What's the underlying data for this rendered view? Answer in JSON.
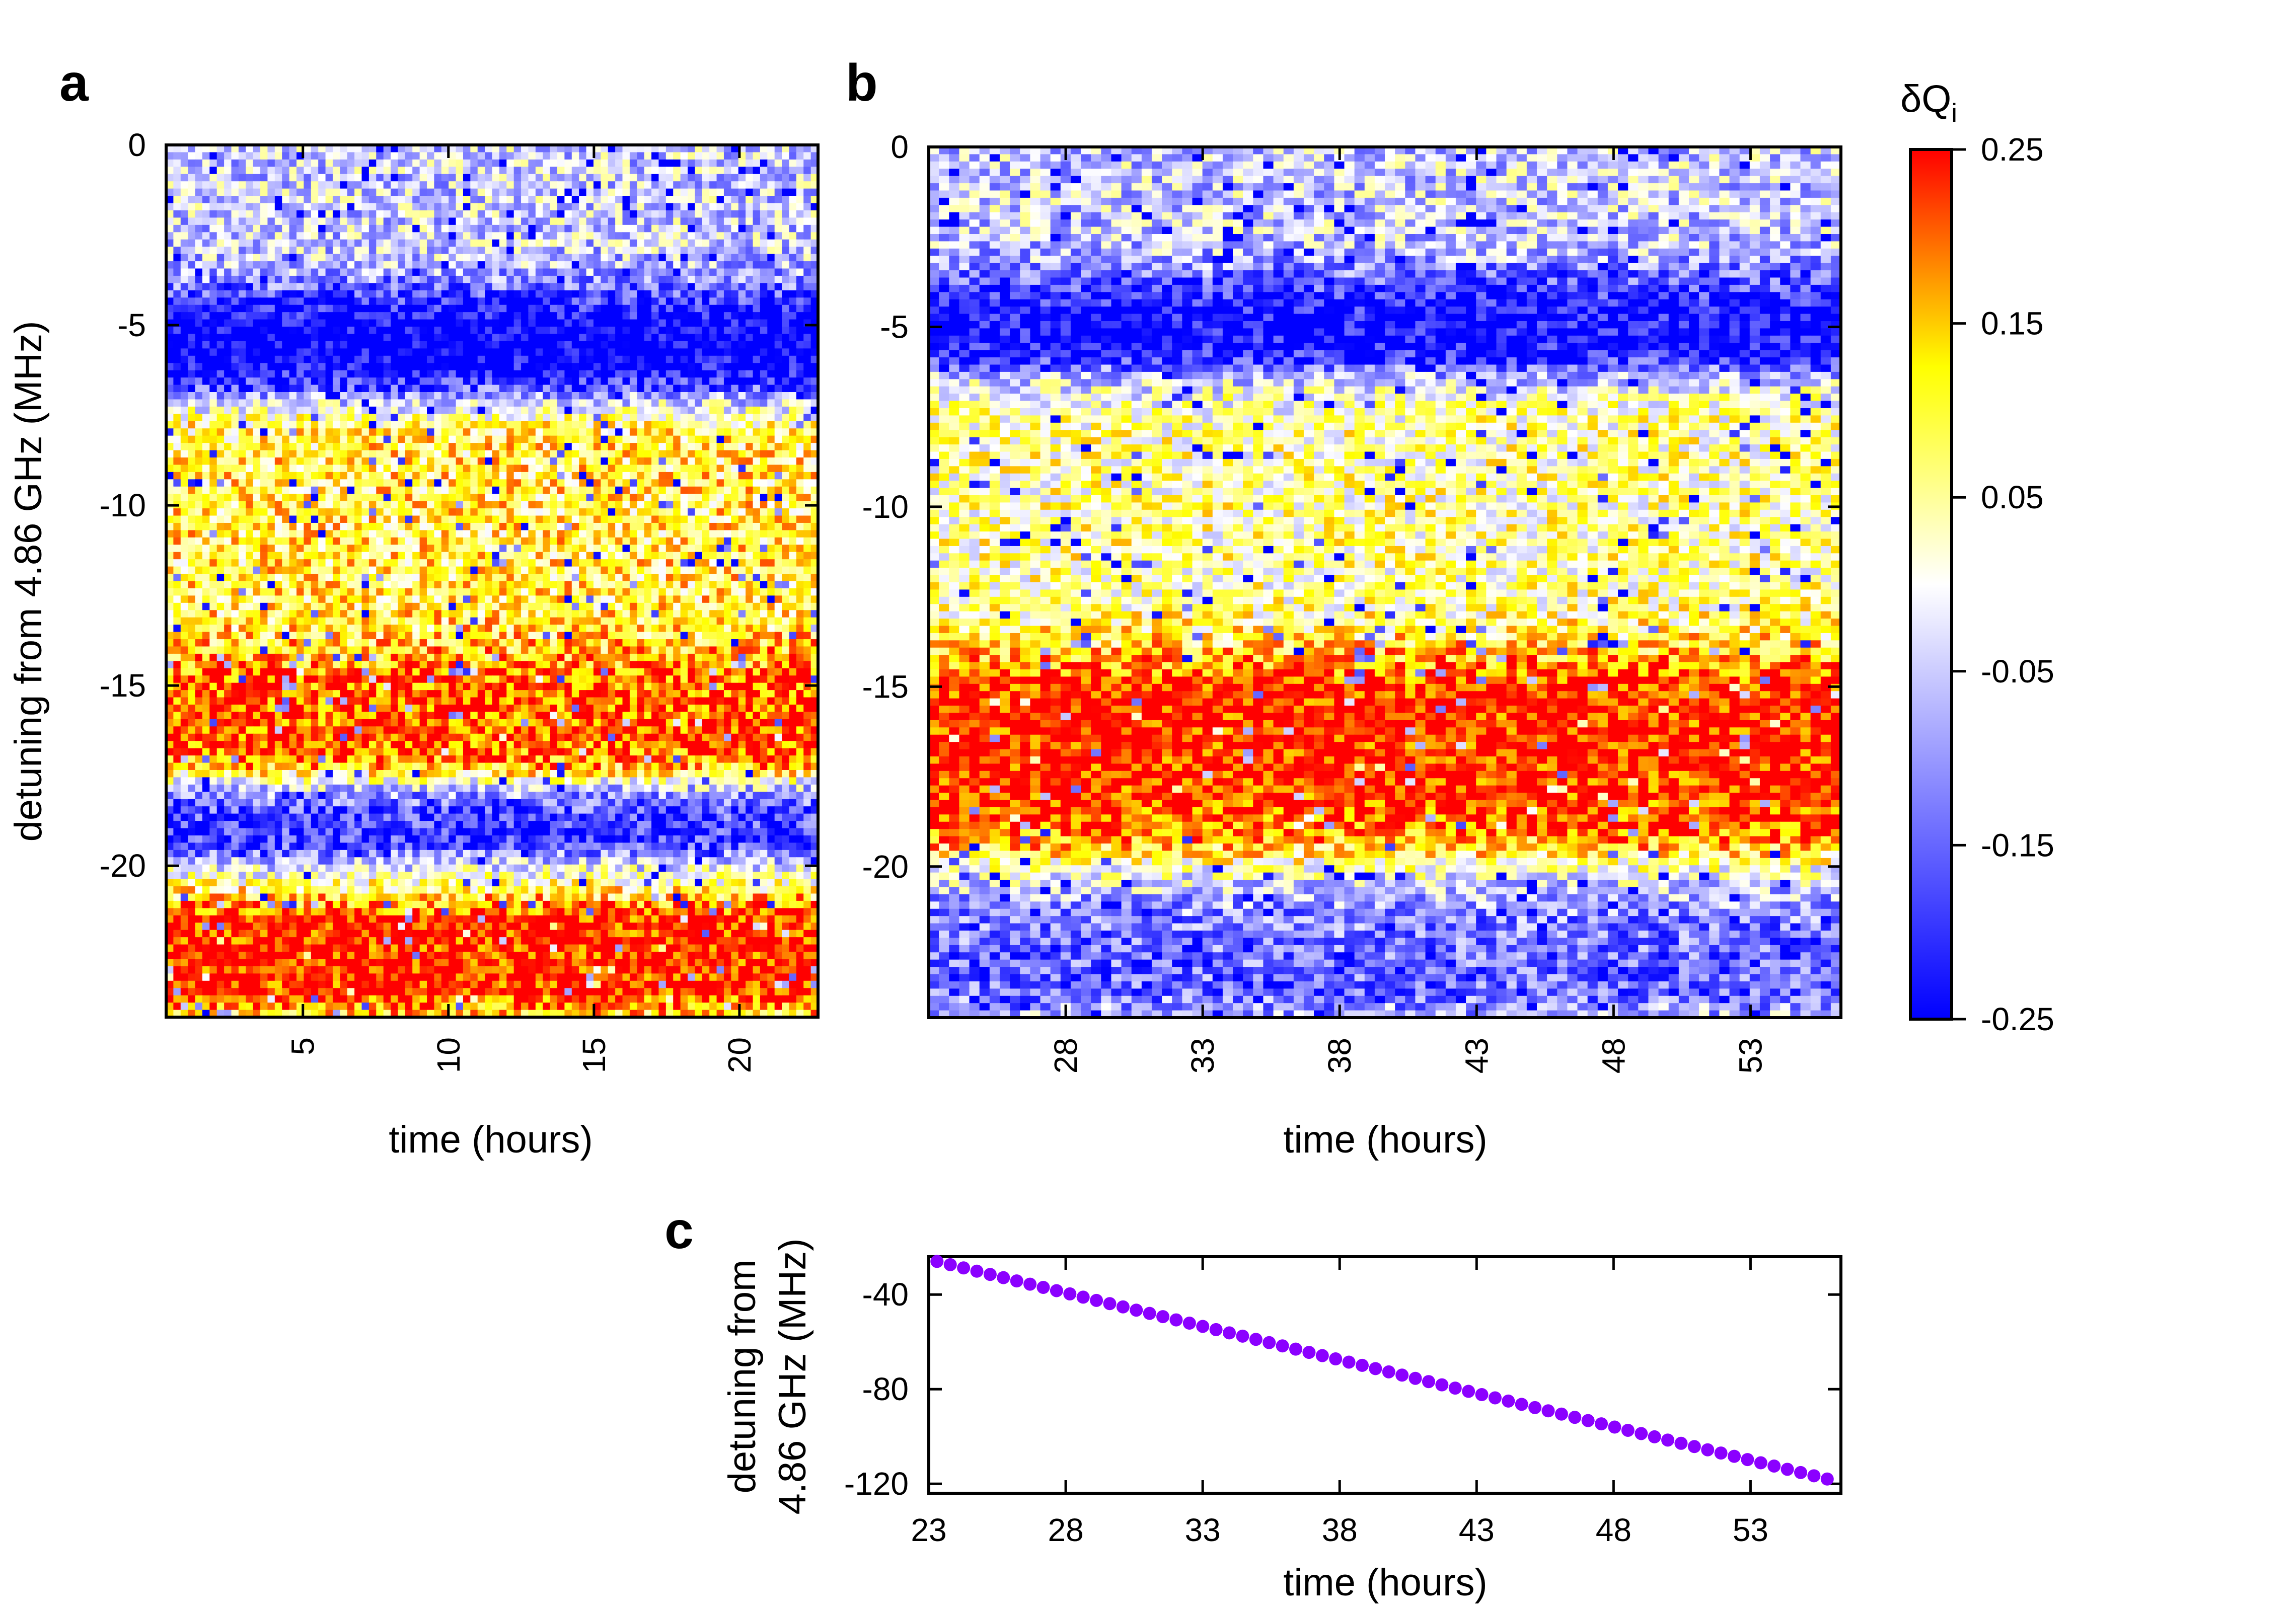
{
  "panels": {
    "a": "a",
    "b": "b",
    "c": "c"
  },
  "colorbar": {
    "title_main": "δQ",
    "title_sub": "i",
    "ticks": [
      "0.25",
      "0.15",
      "0.05",
      "-0.05",
      "-0.15",
      "-0.25"
    ],
    "colors": [
      "#0000ff",
      "#ffffff",
      "#ffff00",
      "#ff0000"
    ]
  },
  "chart_data": [
    {
      "panel": "a",
      "type": "heatmap",
      "xlabel": "time (hours)",
      "ylabel": "detuning from 4.86 GHz (MHz)",
      "xlim": [
        0.3,
        22.7
      ],
      "ylim": [
        0,
        -24.2
      ],
      "xticks": [
        "5",
        "10",
        "15",
        "20"
      ],
      "yticks": [
        "0",
        "-5",
        "-10",
        "-15",
        "-20"
      ],
      "color_range": [
        -0.25,
        0.25
      ],
      "bands": [
        {
          "center": -1.5,
          "width": 2.5,
          "value": -0.05
        },
        {
          "center": -5.5,
          "width": 1.3,
          "value": -0.3
        },
        {
          "center": -9.0,
          "width": 1.8,
          "value": 0.1
        },
        {
          "center": -12.5,
          "width": 1.5,
          "value": 0.1
        },
        {
          "center": -16.0,
          "width": 1.6,
          "value": 0.22
        },
        {
          "center": -18.7,
          "width": 1.0,
          "value": -0.2
        },
        {
          "center": -22.5,
          "width": 1.5,
          "value": 0.25
        }
      ]
    },
    {
      "panel": "b",
      "type": "heatmap",
      "xlabel": "time (hours)",
      "ylabel": "",
      "xlim": [
        23,
        56.3
      ],
      "ylim": [
        0,
        -24.2
      ],
      "xticks": [
        "28",
        "33",
        "38",
        "43",
        "48",
        "53"
      ],
      "yticks": [
        "0",
        "-5",
        "-10",
        "-15",
        "-20"
      ],
      "color_range": [
        -0.25,
        0.25
      ],
      "bands": [
        {
          "center": -1.8,
          "width": 2.5,
          "value": -0.05
        },
        {
          "center": -4.8,
          "width": 1.2,
          "value": -0.3
        },
        {
          "center": -9.5,
          "width": 2.5,
          "value": 0.05
        },
        {
          "center": -17.0,
          "width": 2.8,
          "value": 0.25
        },
        {
          "center": -22.0,
          "width": 2.0,
          "value": -0.15
        }
      ]
    },
    {
      "panel": "c",
      "type": "scatter",
      "xlabel": "time (hours)",
      "ylabel_line1": "detuning from",
      "ylabel_line2": "4.86 GHz (MHz)",
      "xlim": [
        23,
        56.3
      ],
      "ylim": [
        -24,
        -124
      ],
      "xticks": [
        "23",
        "28",
        "33",
        "38",
        "43",
        "48",
        "53"
      ],
      "yticks": [
        "-40",
        "-80",
        "-120"
      ],
      "series": [
        {
          "x_start": 23.3,
          "x_end": 55.8,
          "y_start": -26,
          "y_end": -118,
          "points": 68,
          "color": "#8b00ff"
        }
      ]
    }
  ]
}
